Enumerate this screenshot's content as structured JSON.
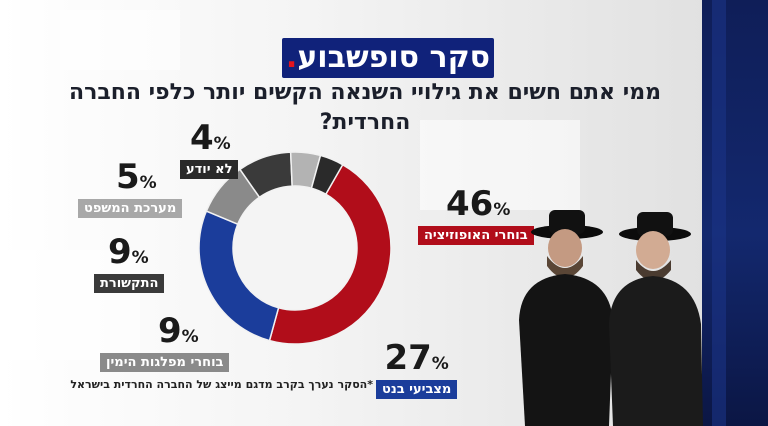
{
  "header": {
    "logo_text": "סקר סופשבוע",
    "logo_dot": "."
  },
  "question": "ממי אתם חשים את גילויי השנאה הקשים יותר כלפי החברה החרדית?",
  "footnote": "*הסקר נערך בקרב מדגם מייצג של החברה החרדית בישראל",
  "percent_sign": "%",
  "colors": {
    "logo_bg": "#10227a",
    "opposition": "#b10d1a",
    "bennett": "#1b3d9b",
    "right_parties": "#8a8a8a",
    "media": "#3a3a3a",
    "legal": "#b3b3b3",
    "dont_know": "#2a2a2a"
  },
  "chart_data": {
    "type": "pie",
    "categories": [
      "בוחרי האופוזיציה",
      "מצביעי בנט",
      "בוחרי מפלגות הימין",
      "התקשורת",
      "מערכת המשפט",
      "לא יודע"
    ],
    "values": [
      46,
      27,
      9,
      9,
      5,
      4
    ],
    "unit": "%",
    "title": "ממי אתם חשים את גילויי השנאה הקשים יותר כלפי החברה החרדית?"
  },
  "labels": [
    {
      "value": "46",
      "text": "בוחרי האופוזיציה",
      "color": "#b10d1a"
    },
    {
      "value": "27",
      "text": "מצביעי בנט",
      "color": "#1b3d9b"
    },
    {
      "value": "9",
      "text": "בוחרי מפלגות הימין",
      "color": "#8a8a8a"
    },
    {
      "value": "9",
      "text": "התקשורת",
      "color": "#3a3a3a"
    },
    {
      "value": "5",
      "text": "מערכת המשפט",
      "color": "#a8a8a8"
    },
    {
      "value": "4",
      "text": "לא יודע",
      "color": "#2a2a2a"
    }
  ]
}
